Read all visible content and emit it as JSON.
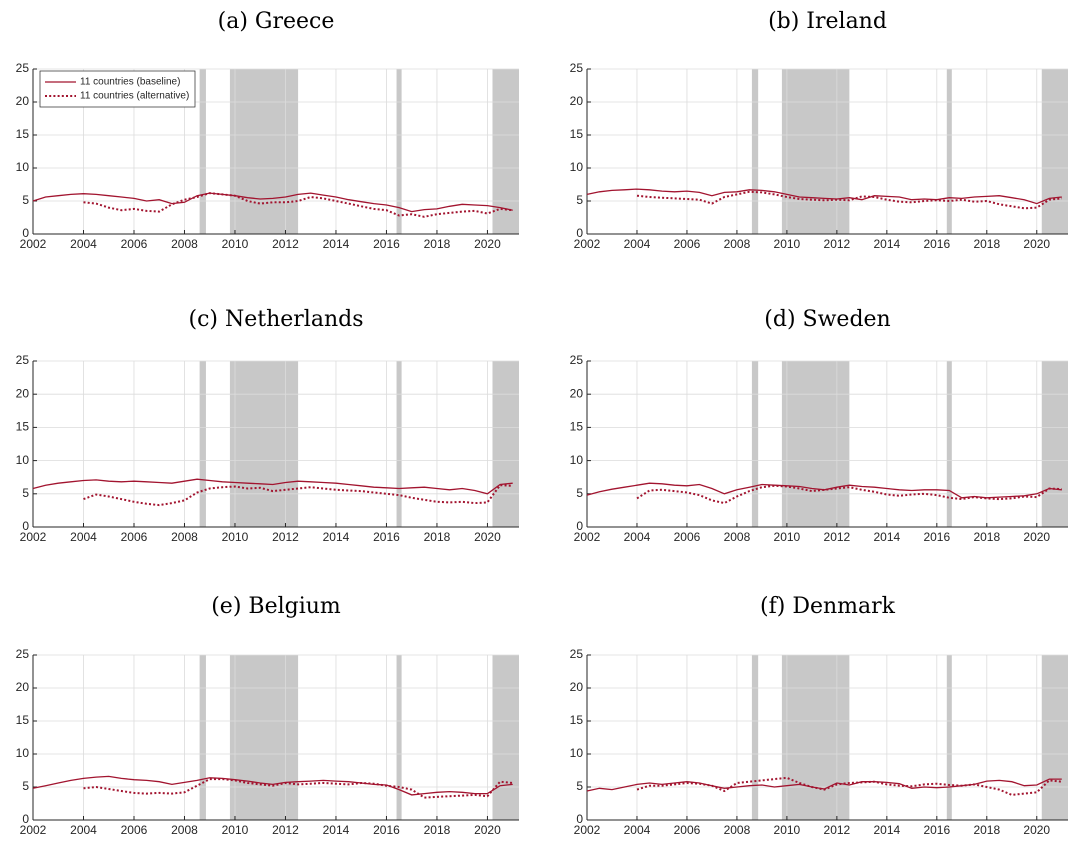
{
  "chart_data": [
    {
      "type": "line",
      "title": "(a) Greece",
      "xlim": [
        2002,
        2021.25
      ],
      "ylim": [
        0,
        25
      ],
      "xticks": [
        2002,
        2004,
        2006,
        2008,
        2010,
        2012,
        2014,
        2016,
        2018,
        2020
      ],
      "yticks": [
        0,
        5,
        10,
        15,
        20,
        25
      ],
      "grid": true,
      "legend": "upper left",
      "shaded_regions": [
        [
          2008.6,
          2008.85
        ],
        [
          2009.8,
          2012.5
        ],
        [
          2016.4,
          2016.6
        ],
        [
          2020.2,
          2021.25
        ]
      ],
      "shade_color": "#c8c8c8",
      "x": [
        2002,
        2002.5,
        2003,
        2003.5,
        2004,
        2004.5,
        2005,
        2005.5,
        2006,
        2006.5,
        2007,
        2007.5,
        2008,
        2008.5,
        2009,
        2009.5,
        2010,
        2010.5,
        2011,
        2011.5,
        2012,
        2012.5,
        2013,
        2013.5,
        2014,
        2014.5,
        2015,
        2015.5,
        2016,
        2016.5,
        2017,
        2017.5,
        2018,
        2018.5,
        2019,
        2019.5,
        2020,
        2020.5,
        2021
      ],
      "series": [
        {
          "name": "11 countries (baseline)",
          "color": "#a2142f",
          "line_style": "solid",
          "values": [
            5.0,
            5.6,
            5.8,
            6.0,
            6.1,
            6.0,
            5.8,
            5.6,
            5.4,
            5.0,
            5.2,
            4.6,
            4.8,
            5.8,
            6.2,
            6.0,
            5.8,
            5.5,
            5.3,
            5.4,
            5.6,
            6.0,
            6.2,
            5.9,
            5.6,
            5.2,
            4.9,
            4.6,
            4.4,
            4.0,
            3.4,
            3.7,
            3.8,
            4.2,
            4.5,
            4.4,
            4.3,
            4.0,
            3.6
          ]
        },
        {
          "name": "11 countries (alternative)",
          "color": "#a2142f",
          "line_style": "dotted",
          "values": [
            null,
            null,
            null,
            null,
            4.8,
            4.6,
            4.0,
            3.6,
            3.8,
            3.5,
            3.4,
            4.5,
            5.2,
            5.6,
            6.2,
            6.0,
            5.8,
            5.0,
            4.6,
            4.8,
            4.8,
            5.0,
            5.6,
            5.4,
            5.0,
            4.6,
            4.2,
            3.8,
            3.6,
            2.8,
            3.0,
            2.6,
            3.0,
            3.2,
            3.4,
            3.5,
            3.1,
            3.8,
            3.6
          ]
        }
      ]
    },
    {
      "type": "line",
      "title": "(b) Ireland",
      "xlim": [
        2002,
        2021.25
      ],
      "ylim": [
        0,
        25
      ],
      "xticks": [
        2002,
        2004,
        2006,
        2008,
        2010,
        2012,
        2014,
        2016,
        2018,
        2020
      ],
      "yticks": [
        0,
        5,
        10,
        15,
        20,
        25
      ],
      "grid": true,
      "shaded_regions": [
        [
          2008.6,
          2008.85
        ],
        [
          2009.8,
          2012.5
        ],
        [
          2016.4,
          2016.6
        ],
        [
          2020.2,
          2021.25
        ]
      ],
      "shade_color": "#c8c8c8",
      "x": [
        2002,
        2002.5,
        2003,
        2003.5,
        2004,
        2004.5,
        2005,
        2005.5,
        2006,
        2006.5,
        2007,
        2007.5,
        2008,
        2008.5,
        2009,
        2009.5,
        2010,
        2010.5,
        2011,
        2011.5,
        2012,
        2012.5,
        2013,
        2013.5,
        2014,
        2014.5,
        2015,
        2015.5,
        2016,
        2016.5,
        2017,
        2017.5,
        2018,
        2018.5,
        2019,
        2019.5,
        2020,
        2020.5,
        2021
      ],
      "series": [
        {
          "color": "#a2142f",
          "line_style": "solid",
          "values": [
            6.0,
            6.4,
            6.6,
            6.7,
            6.8,
            6.7,
            6.5,
            6.4,
            6.5,
            6.3,
            5.8,
            6.3,
            6.4,
            6.7,
            6.6,
            6.4,
            6.0,
            5.6,
            5.5,
            5.4,
            5.3,
            5.5,
            5.2,
            5.8,
            5.7,
            5.6,
            5.2,
            5.3,
            5.2,
            5.5,
            5.4,
            5.6,
            5.7,
            5.8,
            5.5,
            5.2,
            4.6,
            5.4,
            5.6
          ]
        },
        {
          "color": "#a2142f",
          "line_style": "dotted",
          "values": [
            null,
            null,
            null,
            null,
            5.8,
            5.6,
            5.5,
            5.4,
            5.3,
            5.2,
            4.6,
            5.6,
            6.0,
            6.4,
            6.3,
            6.0,
            5.6,
            5.3,
            5.2,
            5.1,
            5.2,
            5.1,
            5.7,
            5.6,
            5.2,
            4.9,
            4.8,
            5.0,
            5.1,
            5.0,
            5.2,
            4.9,
            5.0,
            4.5,
            4.2,
            3.9,
            4.0,
            5.2,
            5.4
          ]
        }
      ]
    },
    {
      "type": "line",
      "title": "(c) Netherlands",
      "xlim": [
        2002,
        2021.25
      ],
      "ylim": [
        0,
        25
      ],
      "xticks": [
        2002,
        2004,
        2006,
        2008,
        2010,
        2012,
        2014,
        2016,
        2018,
        2020
      ],
      "yticks": [
        0,
        5,
        10,
        15,
        20,
        25
      ],
      "grid": true,
      "shaded_regions": [
        [
          2008.6,
          2008.85
        ],
        [
          2009.8,
          2012.5
        ],
        [
          2016.4,
          2016.6
        ],
        [
          2020.2,
          2021.25
        ]
      ],
      "shade_color": "#c8c8c8",
      "x": [
        2002,
        2002.5,
        2003,
        2003.5,
        2004,
        2004.5,
        2005,
        2005.5,
        2006,
        2006.5,
        2007,
        2007.5,
        2008,
        2008.5,
        2009,
        2009.5,
        2010,
        2010.5,
        2011,
        2011.5,
        2012,
        2012.5,
        2013,
        2013.5,
        2014,
        2014.5,
        2015,
        2015.5,
        2016,
        2016.5,
        2017,
        2017.5,
        2018,
        2018.5,
        2019,
        2019.5,
        2020,
        2020.5,
        2021
      ],
      "series": [
        {
          "color": "#a2142f",
          "line_style": "solid",
          "values": [
            5.8,
            6.3,
            6.6,
            6.8,
            7.0,
            7.1,
            6.9,
            6.8,
            6.9,
            6.8,
            6.7,
            6.6,
            6.9,
            7.2,
            7.0,
            6.8,
            6.7,
            6.6,
            6.5,
            6.4,
            6.7,
            6.9,
            6.8,
            6.7,
            6.6,
            6.4,
            6.2,
            6.0,
            5.9,
            5.8,
            5.9,
            6.0,
            5.8,
            5.6,
            5.8,
            5.5,
            5.0,
            6.4,
            6.6
          ]
        },
        {
          "color": "#a2142f",
          "line_style": "dotted",
          "values": [
            null,
            null,
            null,
            null,
            4.2,
            4.9,
            4.6,
            4.2,
            3.8,
            3.5,
            3.3,
            3.6,
            4.0,
            5.2,
            5.8,
            6.0,
            6.1,
            5.8,
            5.9,
            5.4,
            5.6,
            5.8,
            6.0,
            5.8,
            5.6,
            5.5,
            5.4,
            5.2,
            5.0,
            4.8,
            4.4,
            4.1,
            3.8,
            3.7,
            3.8,
            3.6,
            3.7,
            6.3,
            6.2
          ]
        }
      ]
    },
    {
      "type": "line",
      "title": "(d) Sweden",
      "xlim": [
        2002,
        2021.25
      ],
      "ylim": [
        0,
        25
      ],
      "xticks": [
        2002,
        2004,
        2006,
        2008,
        2010,
        2012,
        2014,
        2016,
        2018,
        2020
      ],
      "yticks": [
        0,
        5,
        10,
        15,
        20,
        25
      ],
      "grid": true,
      "shaded_regions": [
        [
          2008.6,
          2008.85
        ],
        [
          2009.8,
          2012.5
        ],
        [
          2016.4,
          2016.6
        ],
        [
          2020.2,
          2021.25
        ]
      ],
      "shade_color": "#c8c8c8",
      "x": [
        2002,
        2002.5,
        2003,
        2003.5,
        2004,
        2004.5,
        2005,
        2005.5,
        2006,
        2006.5,
        2007,
        2007.5,
        2008,
        2008.5,
        2009,
        2009.5,
        2010,
        2010.5,
        2011,
        2011.5,
        2012,
        2012.5,
        2013,
        2013.5,
        2014,
        2014.5,
        2015,
        2015.5,
        2016,
        2016.5,
        2017,
        2017.5,
        2018,
        2018.5,
        2019,
        2019.5,
        2020,
        2020.5,
        2021
      ],
      "series": [
        {
          "color": "#a2142f",
          "line_style": "solid",
          "values": [
            4.8,
            5.3,
            5.7,
            6.0,
            6.3,
            6.6,
            6.5,
            6.3,
            6.2,
            6.4,
            5.8,
            5.0,
            5.6,
            6.0,
            6.4,
            6.3,
            6.2,
            6.1,
            5.8,
            5.6,
            6.0,
            6.3,
            6.1,
            6.0,
            5.8,
            5.6,
            5.5,
            5.6,
            5.6,
            5.5,
            4.4,
            4.6,
            4.4,
            4.5,
            4.6,
            4.7,
            5.0,
            5.8,
            5.6
          ]
        },
        {
          "color": "#a2142f",
          "line_style": "dotted",
          "values": [
            null,
            null,
            null,
            null,
            4.3,
            5.5,
            5.6,
            5.4,
            5.2,
            4.8,
            4.0,
            3.6,
            4.6,
            5.4,
            6.0,
            6.2,
            6.1,
            5.8,
            5.4,
            5.6,
            5.8,
            6.0,
            5.6,
            5.3,
            4.9,
            4.7,
            4.9,
            5.0,
            4.8,
            4.4,
            4.2,
            4.5,
            4.3,
            4.2,
            4.3,
            4.6,
            4.5,
            5.8,
            5.7
          ]
        }
      ]
    },
    {
      "type": "line",
      "title": "(e) Belgium",
      "xlim": [
        2002,
        2021.25
      ],
      "ylim": [
        0,
        25
      ],
      "xticks": [
        2002,
        2004,
        2006,
        2008,
        2010,
        2012,
        2014,
        2016,
        2018,
        2020
      ],
      "yticks": [
        0,
        5,
        10,
        15,
        20,
        25
      ],
      "grid": true,
      "shaded_regions": [
        [
          2008.6,
          2008.85
        ],
        [
          2009.8,
          2012.5
        ],
        [
          2016.4,
          2016.6
        ],
        [
          2020.2,
          2021.25
        ]
      ],
      "shade_color": "#c8c8c8",
      "x": [
        2002,
        2002.5,
        2003,
        2003.5,
        2004,
        2004.5,
        2005,
        2005.5,
        2006,
        2006.5,
        2007,
        2007.5,
        2008,
        2008.5,
        2009,
        2009.5,
        2010,
        2010.5,
        2011,
        2011.5,
        2012,
        2012.5,
        2013,
        2013.5,
        2014,
        2014.5,
        2015,
        2015.5,
        2016,
        2016.5,
        2017,
        2017.5,
        2018,
        2018.5,
        2019,
        2019.5,
        2020,
        2020.5,
        2021
      ],
      "series": [
        {
          "color": "#a2142f",
          "line_style": "solid",
          "values": [
            4.8,
            5.2,
            5.6,
            6.0,
            6.3,
            6.5,
            6.6,
            6.3,
            6.1,
            6.0,
            5.8,
            5.4,
            5.7,
            6.0,
            6.4,
            6.3,
            6.1,
            5.9,
            5.6,
            5.4,
            5.7,
            5.8,
            5.9,
            6.0,
            5.9,
            5.8,
            5.6,
            5.4,
            5.3,
            4.6,
            3.8,
            4.0,
            4.2,
            4.3,
            4.2,
            4.0,
            4.0,
            5.2,
            5.4
          ]
        },
        {
          "color": "#a2142f",
          "line_style": "dotted",
          "values": [
            null,
            null,
            null,
            null,
            4.8,
            5.0,
            4.7,
            4.4,
            4.1,
            4.0,
            4.1,
            4.0,
            4.2,
            5.2,
            6.2,
            6.2,
            6.0,
            5.6,
            5.4,
            5.2,
            5.6,
            5.4,
            5.5,
            5.6,
            5.5,
            5.4,
            5.6,
            5.5,
            5.2,
            5.0,
            4.6,
            3.4,
            3.5,
            3.6,
            3.7,
            3.8,
            3.6,
            5.8,
            5.6
          ]
        }
      ]
    },
    {
      "type": "line",
      "title": "(f) Denmark",
      "xlim": [
        2002,
        2021.25
      ],
      "ylim": [
        0,
        25
      ],
      "xticks": [
        2002,
        2004,
        2006,
        2008,
        2010,
        2012,
        2014,
        2016,
        2018,
        2020
      ],
      "yticks": [
        0,
        5,
        10,
        15,
        20,
        25
      ],
      "grid": true,
      "shaded_regions": [
        [
          2008.6,
          2008.85
        ],
        [
          2009.8,
          2012.5
        ],
        [
          2016.4,
          2016.6
        ],
        [
          2020.2,
          2021.25
        ]
      ],
      "shade_color": "#c8c8c8",
      "x": [
        2002,
        2002.5,
        2003,
        2003.5,
        2004,
        2004.5,
        2005,
        2005.5,
        2006,
        2006.5,
        2007,
        2007.5,
        2008,
        2008.5,
        2009,
        2009.5,
        2010,
        2010.5,
        2011,
        2011.5,
        2012,
        2012.5,
        2013,
        2013.5,
        2014,
        2014.5,
        2015,
        2015.5,
        2016,
        2016.5,
        2017,
        2017.5,
        2018,
        2018.5,
        2019,
        2019.5,
        2020,
        2020.5,
        2021
      ],
      "series": [
        {
          "color": "#a2142f",
          "line_style": "solid",
          "values": [
            4.4,
            4.8,
            4.6,
            5.0,
            5.4,
            5.6,
            5.4,
            5.6,
            5.8,
            5.6,
            5.2,
            4.8,
            5.0,
            5.2,
            5.3,
            5.0,
            5.2,
            5.4,
            5.0,
            4.7,
            5.6,
            5.3,
            5.8,
            5.8,
            5.7,
            5.5,
            4.8,
            5.0,
            4.9,
            5.0,
            5.2,
            5.4,
            5.9,
            6.0,
            5.8,
            5.2,
            5.3,
            6.2,
            6.2
          ]
        },
        {
          "color": "#a2142f",
          "line_style": "dotted",
          "values": [
            null,
            null,
            null,
            null,
            4.6,
            5.2,
            5.2,
            5.4,
            5.6,
            5.5,
            5.2,
            4.4,
            5.6,
            5.8,
            6.0,
            6.2,
            6.4,
            5.6,
            5.0,
            4.6,
            5.4,
            5.6,
            5.7,
            5.8,
            5.4,
            5.2,
            5.1,
            5.4,
            5.5,
            5.3,
            5.2,
            5.4,
            5.0,
            4.6,
            3.8,
            4.0,
            4.2,
            6.0,
            5.8
          ]
        }
      ]
    }
  ]
}
